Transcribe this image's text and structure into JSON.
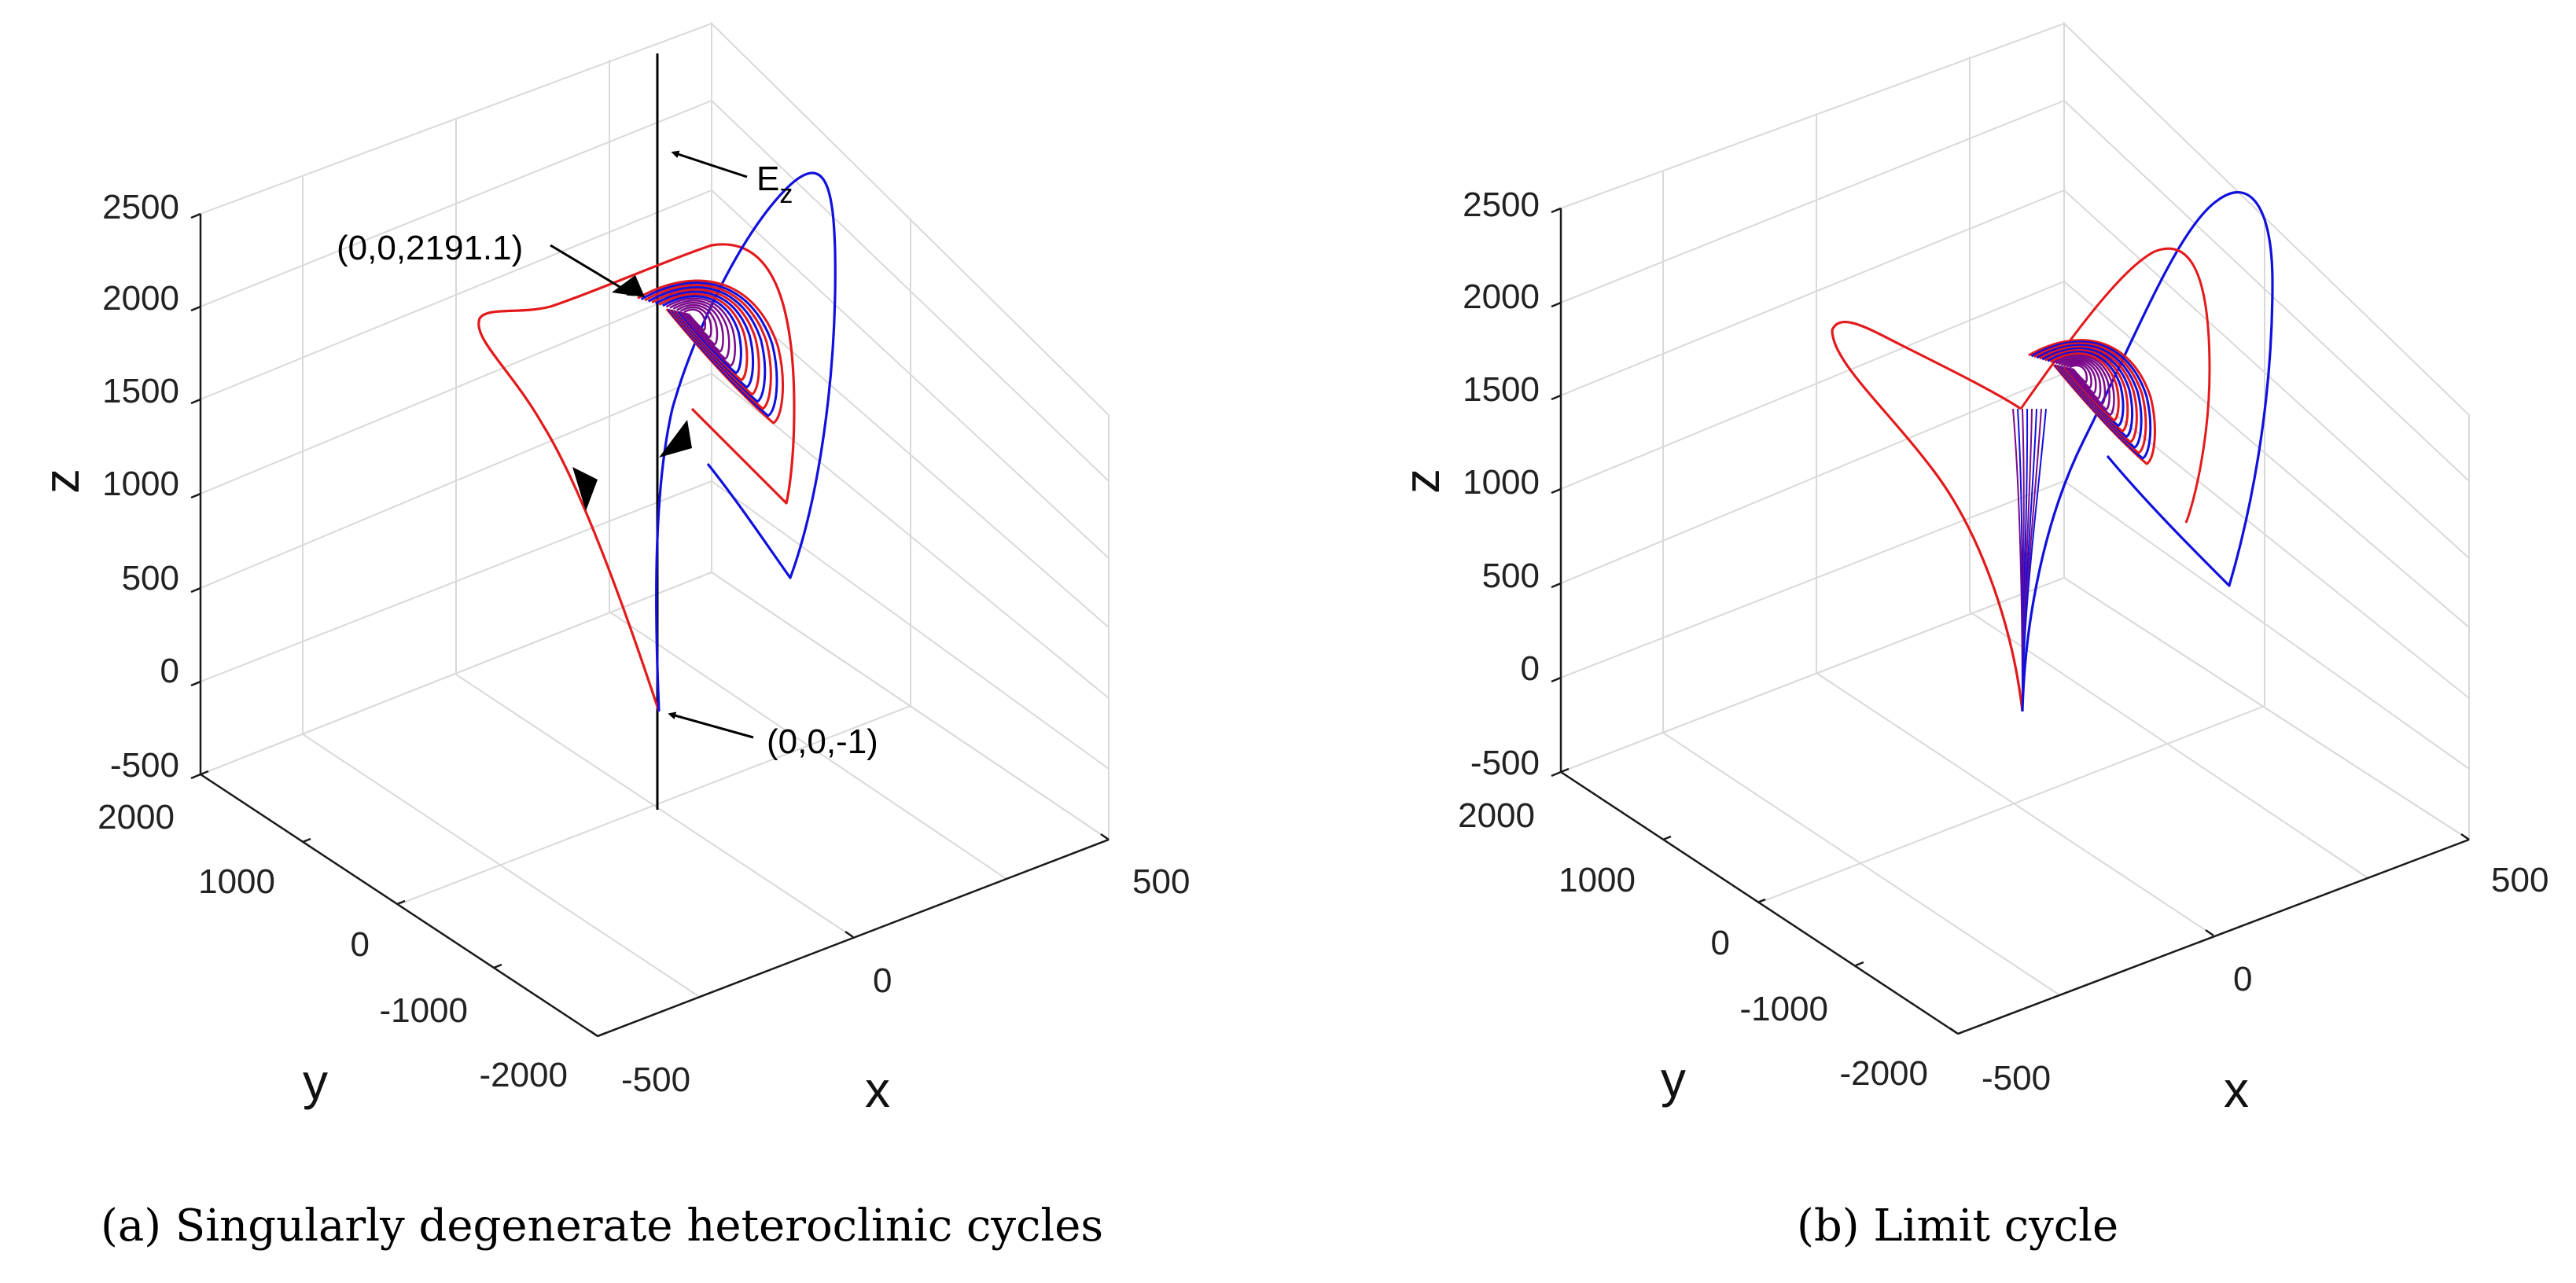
{
  "colors": {
    "red": "#e31a1c",
    "blue": "#1010dd",
    "purple": "#7a0a8a",
    "grid": "#d9d9d9",
    "axis": "#1a1a1a"
  },
  "chart_data": [
    {
      "type": "line3d",
      "caption": "(a) Singularly degenerate heteroclinic cycles",
      "xlabel": "x",
      "ylabel": "y",
      "zlabel": "z",
      "xlim": [
        -500,
        500
      ],
      "ylim": [
        -2000,
        2000
      ],
      "zlim": [
        -500,
        2500
      ],
      "x_ticks": [
        "-500",
        "0",
        "500"
      ],
      "y_ticks": [
        "-2000",
        "-1000",
        "0",
        "1000",
        "2000"
      ],
      "z_ticks": [
        "-500",
        "0",
        "500",
        "1000",
        "1500",
        "2000",
        "2500"
      ],
      "series": [
        {
          "name": "red orbit",
          "color": "red",
          "start": [
            0,
            0,
            -1
          ],
          "end": [
            0,
            0,
            2191.1
          ]
        },
        {
          "name": "blue orbit",
          "color": "blue",
          "start": [
            0,
            0,
            -1
          ],
          "end": [
            0,
            0,
            2191.1
          ]
        },
        {
          "name": "E_z",
          "color": "black",
          "line": "z-axis"
        }
      ],
      "annotations": [
        "(0,0,2191.1)",
        "(0,0,-1)"
      ],
      "line_label": {
        "base": "E",
        "sub": "z"
      }
    },
    {
      "type": "line3d",
      "caption": "(b) Limit cycle",
      "xlabel": "x",
      "ylabel": "y",
      "zlabel": "z",
      "xlim": [
        -500,
        500
      ],
      "ylim": [
        -2000,
        2000
      ],
      "zlim": [
        -500,
        2500
      ],
      "x_ticks": [
        "-500",
        "0",
        "500"
      ],
      "y_ticks": [
        "-2000",
        "-1000",
        "0",
        "1000",
        "2000"
      ],
      "z_ticks": [
        "-500",
        "0",
        "500",
        "1000",
        "1500",
        "2000",
        "2500"
      ],
      "series": [
        {
          "name": "red orbit",
          "color": "red"
        },
        {
          "name": "blue orbit",
          "color": "blue"
        }
      ]
    }
  ]
}
